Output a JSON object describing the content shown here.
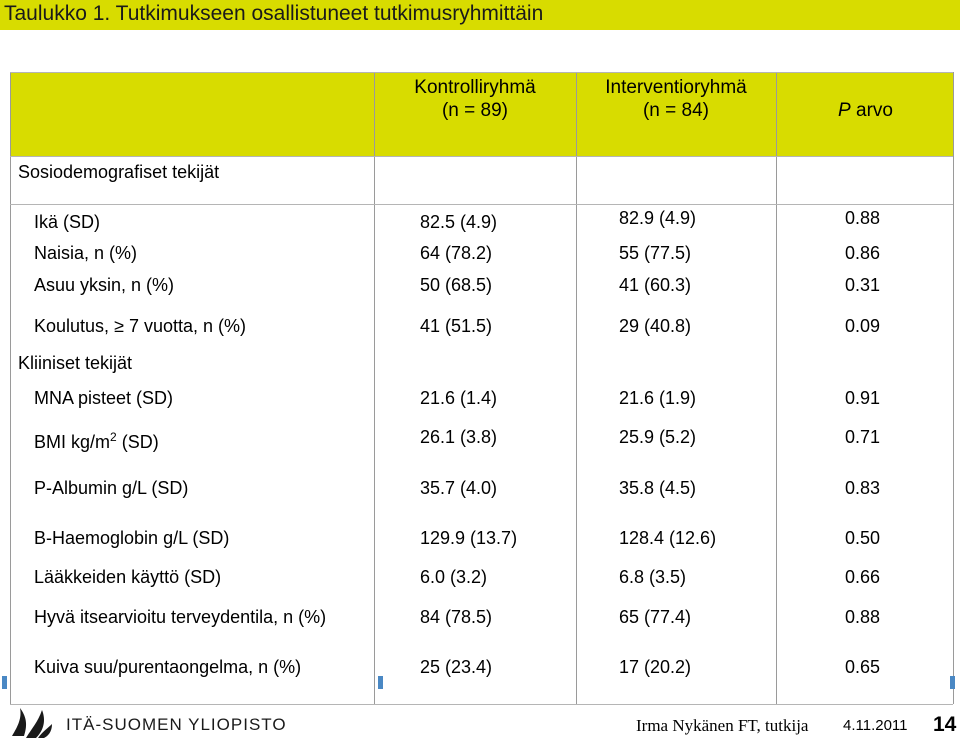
{
  "title": "Taulukko 1. Tutkimukseen osallistuneet tutkimusryhmittäin",
  "headers": {
    "control_line1": "Kontrolliryhmä",
    "control_line2": "(n = 89)",
    "intervention_line1": "Interventioryhmä",
    "intervention_line2": "(n = 84)",
    "p_italic": "P",
    "p_rest": " arvo"
  },
  "sections": {
    "socio": "Sosiodemografiset tekijät",
    "clinical": "Kliiniset tekijät"
  },
  "rows": [
    {
      "label": "Ikä (SD)",
      "control": "82.5 (4.9)",
      "intervention": "82.9 (4.9)",
      "p": "0.88"
    },
    {
      "label": "Naisia, n (%)",
      "control": "64 (78.2)",
      "intervention": "55 (77.5)",
      "p": "0.86"
    },
    {
      "label": "Asuu yksin, n (%)",
      "control": "50 (68.5)",
      "intervention": "41 (60.3)",
      "p": "0.31"
    },
    {
      "label_pre": "Koulutus, ",
      "label_sym": "≥",
      "label_post": " 7 vuotta, n (%)",
      "control": "41 (51.5)",
      "intervention": "29 (40.8)",
      "p": "0.09"
    },
    {
      "label": "MNA pisteet (SD)",
      "control": "21.6 (1.4)",
      "intervention": "21.6 (1.9)",
      "p": "0.91"
    },
    {
      "label_pre": "BMI kg/m",
      "label_sup": "2",
      "label_post": " (SD)",
      "control": "26.1 (3.8)",
      "intervention": "25.9 (5.2)",
      "p": "0.71"
    },
    {
      "label": "P-Albumin g/L (SD)",
      "control": "35.7 (4.0)",
      "intervention": "35.8 (4.5)",
      "p": "0.83"
    },
    {
      "label": "B-Haemoglobin g/L (SD)",
      "control": "129.9 (13.7)",
      "intervention": "128.4 (12.6)",
      "p": "0.50"
    },
    {
      "label": "Lääkkeiden käyttö (SD)",
      "control": "6.0 (3.2)",
      "intervention": "6.8 (3.5)",
      "p": "0.66"
    },
    {
      "label": "Hyvä itsearvioitu terveydentila, n (%)",
      "control": "84 (78.5)",
      "intervention": "65 (77.4)",
      "p": "0.88"
    },
    {
      "label": "Kuiva suu/purentaongelma, n (%)",
      "control": "25 (23.4)",
      "intervention": "17 (20.2)",
      "p": "0.65"
    }
  ],
  "footer": {
    "university": "ITÄ-SUOMEN YLIOPISTO",
    "author": "Irma Nykänen FT, tutkija",
    "date": "4.11.2011",
    "page": "14"
  },
  "colors": {
    "header_bg": "#d8dc00",
    "accent_blue": "#4a88c4"
  }
}
